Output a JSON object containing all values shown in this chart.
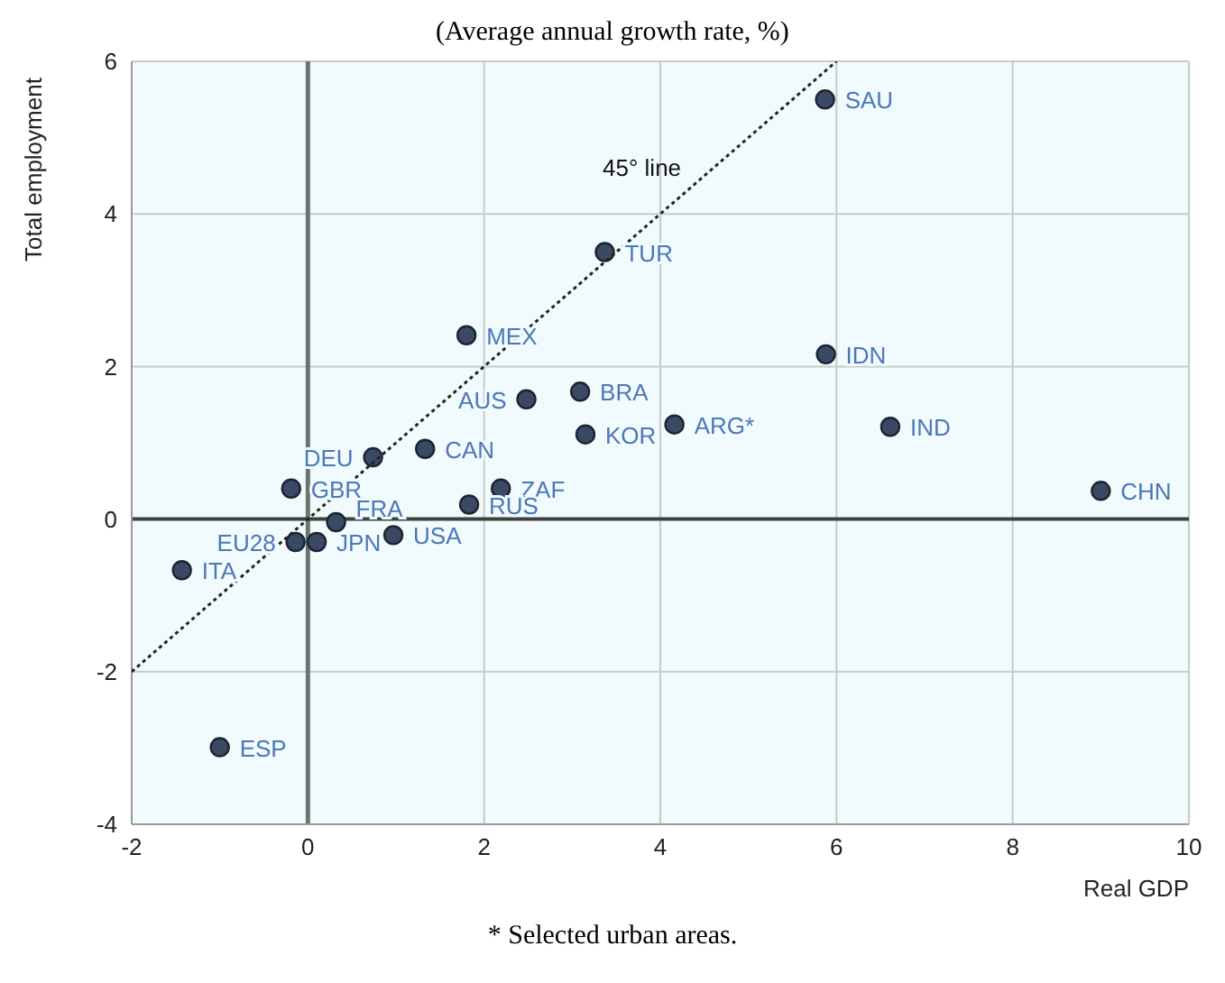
{
  "chart_data": {
    "type": "scatter",
    "subtitle": "(Average annual growth rate, %)",
    "xlabel": "Real GDP",
    "ylabel": "Total employment",
    "series": [
      {
        "color": "#3b4a64",
        "x": [
          5.87,
          3.37,
          1.8,
          2.48,
          3.09,
          3.15,
          5.88,
          4.16,
          6.61,
          9.0,
          0.74,
          1.33,
          -0.19,
          2.19,
          1.83,
          0.32,
          0.97,
          -0.14,
          0.1,
          -1.43,
          -1.0
        ],
        "values": [
          5.5,
          3.5,
          2.41,
          1.57,
          1.67,
          1.11,
          2.16,
          1.24,
          1.21,
          0.37,
          0.81,
          0.92,
          0.4,
          0.4,
          0.19,
          -0.04,
          -0.21,
          -0.3,
          -0.3,
          -0.67,
          -2.99
        ],
        "value_labels": [
          "SAU",
          "TUR",
          "MEX",
          "AUS",
          "BRA",
          "KOR",
          "IDN",
          "ARG*",
          "IND",
          "CHN",
          "DEU",
          "CAN",
          "GBR",
          "ZAF",
          "RUS",
          "FRA",
          "USA",
          "EU28",
          "JPN",
          "ITA",
          "ESP"
        ]
      },
      {
        "type": "line",
        "color": "#222222",
        "line_style": "dotted",
        "marker": "none",
        "x": [
          -2,
          6
        ],
        "values": [
          -2,
          6
        ]
      }
    ],
    "xlim": [
      -2,
      10
    ],
    "xticks": [
      -2,
      0,
      2,
      4,
      6,
      8,
      10
    ],
    "ylim": [
      -4,
      6
    ],
    "yticks": [
      -4,
      -2,
      0,
      2,
      4,
      6
    ],
    "grid": true,
    "marker": "circle",
    "ref_lines": [
      {
        "axis": "x",
        "value": 0,
        "color": "#6b7570"
      },
      {
        "axis": "y",
        "value": 0,
        "color": "#3c4440"
      }
    ],
    "annotations": [
      "45° line",
      "* Selected urban areas."
    ]
  }
}
